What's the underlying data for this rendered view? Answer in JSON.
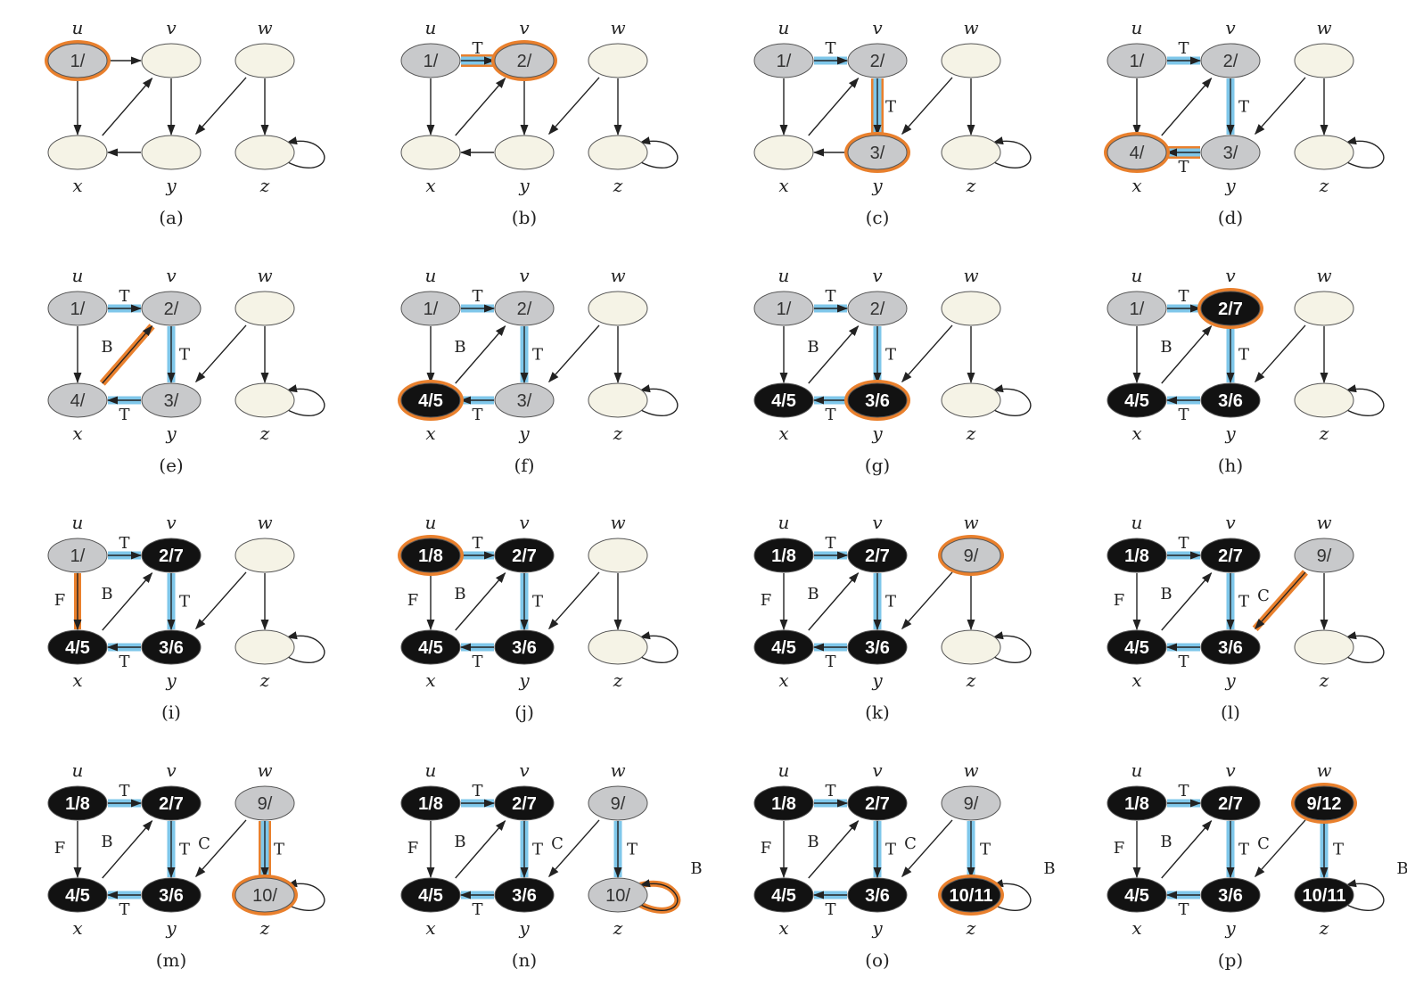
{
  "colors": {
    "white_node": "#f5f3e6",
    "gray_node": "#c8c9cb",
    "black_node": "#121212",
    "tree_edge": "#7fc7ea",
    "highlight": "#e9802d",
    "edge": "#222222"
  },
  "vertex_names": {
    "u": "u",
    "v": "v",
    "w": "w",
    "x": "x",
    "y": "y",
    "z": "z"
  },
  "panels": [
    {
      "caption": "(a)",
      "nodes": {
        "u": {
          "label": "1/",
          "state": "gray",
          "hl": true
        }
      },
      "edges": {}
    },
    {
      "caption": "(b)",
      "nodes": {
        "u": {
          "label": "1/",
          "state": "gray"
        },
        "v": {
          "label": "2/",
          "state": "gray",
          "hl": true
        }
      },
      "edges": {
        "uv": {
          "label": "T",
          "tree": true,
          "hl": true
        }
      }
    },
    {
      "caption": "(c)",
      "nodes": {
        "u": {
          "label": "1/",
          "state": "gray"
        },
        "v": {
          "label": "2/",
          "state": "gray"
        },
        "y": {
          "label": "3/",
          "state": "gray",
          "hl": true
        }
      },
      "edges": {
        "uv": {
          "label": "T",
          "tree": true
        },
        "vy": {
          "label": "T",
          "tree": true,
          "hl": true
        }
      }
    },
    {
      "caption": "(d)",
      "nodes": {
        "u": {
          "label": "1/",
          "state": "gray"
        },
        "v": {
          "label": "2/",
          "state": "gray"
        },
        "y": {
          "label": "3/",
          "state": "gray"
        },
        "x": {
          "label": "4/",
          "state": "gray",
          "hl": true
        }
      },
      "edges": {
        "uv": {
          "label": "T",
          "tree": true
        },
        "vy": {
          "label": "T",
          "tree": true
        },
        "yx": {
          "label": "T",
          "tree": true,
          "hl": true
        }
      }
    },
    {
      "caption": "(e)",
      "nodes": {
        "u": {
          "label": "1/",
          "state": "gray"
        },
        "v": {
          "label": "2/",
          "state": "gray"
        },
        "y": {
          "label": "3/",
          "state": "gray"
        },
        "x": {
          "label": "4/",
          "state": "gray"
        }
      },
      "edges": {
        "uv": {
          "label": "T",
          "tree": true
        },
        "vy": {
          "label": "T",
          "tree": true
        },
        "yx": {
          "label": "T",
          "tree": true
        },
        "xv": {
          "label": "B",
          "hl": true
        }
      }
    },
    {
      "caption": "(f)",
      "nodes": {
        "u": {
          "label": "1/",
          "state": "gray"
        },
        "v": {
          "label": "2/",
          "state": "gray"
        },
        "y": {
          "label": "3/",
          "state": "gray"
        },
        "x": {
          "label": "4/5",
          "state": "black",
          "hl": true
        }
      },
      "edges": {
        "uv": {
          "label": "T",
          "tree": true
        },
        "vy": {
          "label": "T",
          "tree": true
        },
        "yx": {
          "label": "T",
          "tree": true
        },
        "xv": {
          "label": "B"
        }
      }
    },
    {
      "caption": "(g)",
      "nodes": {
        "u": {
          "label": "1/",
          "state": "gray"
        },
        "v": {
          "label": "2/",
          "state": "gray"
        },
        "y": {
          "label": "3/6",
          "state": "black",
          "hl": true
        },
        "x": {
          "label": "4/5",
          "state": "black"
        }
      },
      "edges": {
        "uv": {
          "label": "T",
          "tree": true
        },
        "vy": {
          "label": "T",
          "tree": true
        },
        "yx": {
          "label": "T",
          "tree": true
        },
        "xv": {
          "label": "B"
        }
      }
    },
    {
      "caption": "(h)",
      "nodes": {
        "u": {
          "label": "1/",
          "state": "gray"
        },
        "v": {
          "label": "2/7",
          "state": "black",
          "hl": true
        },
        "y": {
          "label": "3/6",
          "state": "black"
        },
        "x": {
          "label": "4/5",
          "state": "black"
        }
      },
      "edges": {
        "uv": {
          "label": "T",
          "tree": true
        },
        "vy": {
          "label": "T",
          "tree": true
        },
        "yx": {
          "label": "T",
          "tree": true
        },
        "xv": {
          "label": "B"
        }
      }
    },
    {
      "caption": "(i)",
      "nodes": {
        "u": {
          "label": "1/",
          "state": "gray"
        },
        "v": {
          "label": "2/7",
          "state": "black"
        },
        "y": {
          "label": "3/6",
          "state": "black"
        },
        "x": {
          "label": "4/5",
          "state": "black"
        }
      },
      "edges": {
        "uv": {
          "label": "T",
          "tree": true
        },
        "vy": {
          "label": "T",
          "tree": true
        },
        "yx": {
          "label": "T",
          "tree": true
        },
        "xv": {
          "label": "B"
        },
        "ux": {
          "label": "F",
          "hl": true
        }
      }
    },
    {
      "caption": "(j)",
      "nodes": {
        "u": {
          "label": "1/8",
          "state": "black",
          "hl": true
        },
        "v": {
          "label": "2/7",
          "state": "black"
        },
        "y": {
          "label": "3/6",
          "state": "black"
        },
        "x": {
          "label": "4/5",
          "state": "black"
        }
      },
      "edges": {
        "uv": {
          "label": "T",
          "tree": true
        },
        "vy": {
          "label": "T",
          "tree": true
        },
        "yx": {
          "label": "T",
          "tree": true
        },
        "xv": {
          "label": "B"
        },
        "ux": {
          "label": "F"
        }
      }
    },
    {
      "caption": "(k)",
      "nodes": {
        "u": {
          "label": "1/8",
          "state": "black"
        },
        "v": {
          "label": "2/7",
          "state": "black"
        },
        "y": {
          "label": "3/6",
          "state": "black"
        },
        "x": {
          "label": "4/5",
          "state": "black"
        },
        "w": {
          "label": "9/",
          "state": "gray",
          "hl": true
        }
      },
      "edges": {
        "uv": {
          "label": "T",
          "tree": true
        },
        "vy": {
          "label": "T",
          "tree": true
        },
        "yx": {
          "label": "T",
          "tree": true
        },
        "xv": {
          "label": "B"
        },
        "ux": {
          "label": "F"
        }
      }
    },
    {
      "caption": "(l)",
      "nodes": {
        "u": {
          "label": "1/8",
          "state": "black"
        },
        "v": {
          "label": "2/7",
          "state": "black"
        },
        "y": {
          "label": "3/6",
          "state": "black"
        },
        "x": {
          "label": "4/5",
          "state": "black"
        },
        "w": {
          "label": "9/",
          "state": "gray"
        }
      },
      "edges": {
        "uv": {
          "label": "T",
          "tree": true
        },
        "vy": {
          "label": "T",
          "tree": true
        },
        "yx": {
          "label": "T",
          "tree": true
        },
        "xv": {
          "label": "B"
        },
        "ux": {
          "label": "F"
        },
        "wy": {
          "label": "C",
          "hl": true
        }
      }
    },
    {
      "caption": "(m)",
      "nodes": {
        "u": {
          "label": "1/8",
          "state": "black"
        },
        "v": {
          "label": "2/7",
          "state": "black"
        },
        "y": {
          "label": "3/6",
          "state": "black"
        },
        "x": {
          "label": "4/5",
          "state": "black"
        },
        "w": {
          "label": "9/",
          "state": "gray"
        },
        "z": {
          "label": "10/",
          "state": "gray",
          "hl": true
        }
      },
      "edges": {
        "uv": {
          "label": "T",
          "tree": true
        },
        "vy": {
          "label": "T",
          "tree": true
        },
        "yx": {
          "label": "T",
          "tree": true
        },
        "xv": {
          "label": "B"
        },
        "ux": {
          "label": "F"
        },
        "wy": {
          "label": "C"
        },
        "wz": {
          "label": "T",
          "tree": true,
          "hl": true
        }
      }
    },
    {
      "caption": "(n)",
      "nodes": {
        "u": {
          "label": "1/8",
          "state": "black"
        },
        "v": {
          "label": "2/7",
          "state": "black"
        },
        "y": {
          "label": "3/6",
          "state": "black"
        },
        "x": {
          "label": "4/5",
          "state": "black"
        },
        "w": {
          "label": "9/",
          "state": "gray"
        },
        "z": {
          "label": "10/",
          "state": "gray"
        }
      },
      "edges": {
        "uv": {
          "label": "T",
          "tree": true
        },
        "vy": {
          "label": "T",
          "tree": true
        },
        "yx": {
          "label": "T",
          "tree": true
        },
        "xv": {
          "label": "B"
        },
        "ux": {
          "label": "F"
        },
        "wy": {
          "label": "C"
        },
        "wz": {
          "label": "T",
          "tree": true
        },
        "zz": {
          "label": "B",
          "hl": true
        }
      }
    },
    {
      "caption": "(o)",
      "nodes": {
        "u": {
          "label": "1/8",
          "state": "black"
        },
        "v": {
          "label": "2/7",
          "state": "black"
        },
        "y": {
          "label": "3/6",
          "state": "black"
        },
        "x": {
          "label": "4/5",
          "state": "black"
        },
        "w": {
          "label": "9/",
          "state": "gray"
        },
        "z": {
          "label": "10/11",
          "state": "black",
          "hl": true
        }
      },
      "edges": {
        "uv": {
          "label": "T",
          "tree": true
        },
        "vy": {
          "label": "T",
          "tree": true
        },
        "yx": {
          "label": "T",
          "tree": true
        },
        "xv": {
          "label": "B"
        },
        "ux": {
          "label": "F"
        },
        "wy": {
          "label": "C"
        },
        "wz": {
          "label": "T",
          "tree": true
        },
        "zz": {
          "label": "B"
        }
      }
    },
    {
      "caption": "(p)",
      "nodes": {
        "u": {
          "label": "1/8",
          "state": "black"
        },
        "v": {
          "label": "2/7",
          "state": "black"
        },
        "y": {
          "label": "3/6",
          "state": "black"
        },
        "x": {
          "label": "4/5",
          "state": "black"
        },
        "w": {
          "label": "9/12",
          "state": "black",
          "hl": true
        },
        "z": {
          "label": "10/11",
          "state": "black"
        }
      },
      "edges": {
        "uv": {
          "label": "T",
          "tree": true
        },
        "vy": {
          "label": "T",
          "tree": true
        },
        "yx": {
          "label": "T",
          "tree": true
        },
        "xv": {
          "label": "B"
        },
        "ux": {
          "label": "F"
        },
        "wy": {
          "label": "C"
        },
        "wz": {
          "label": "T",
          "tree": true
        },
        "zz": {
          "label": "B"
        }
      }
    }
  ]
}
